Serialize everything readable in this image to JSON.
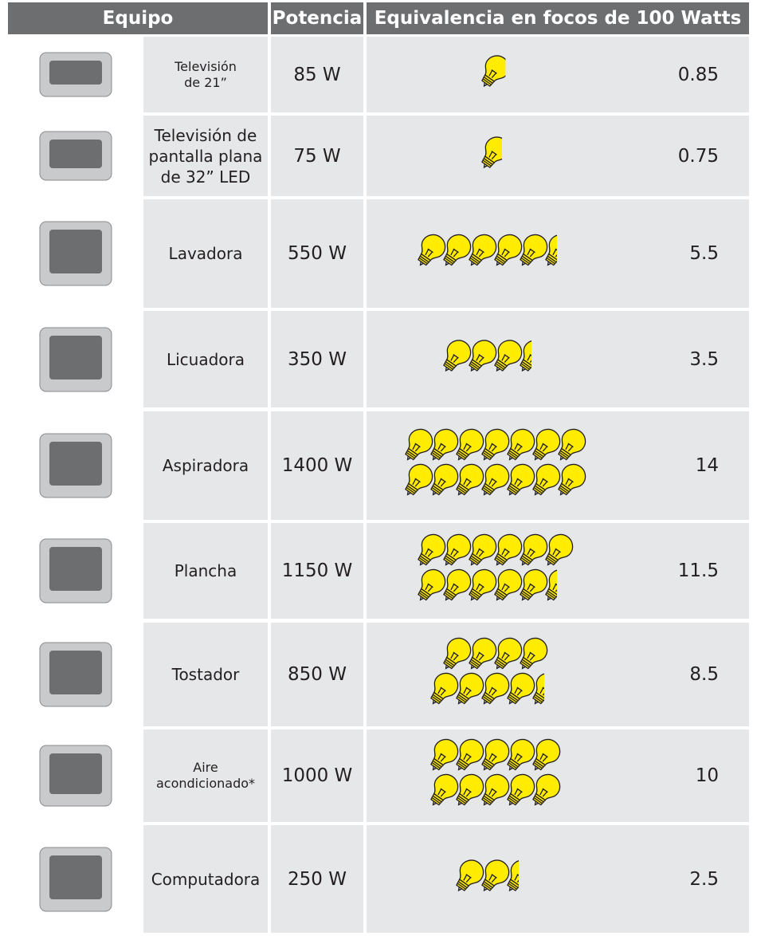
{
  "table": {
    "header": [
      "Equipo",
      "Potencia",
      "Equivalencia en focos de 100 Watts"
    ],
    "rows": [
      {
        "name": "Televisión\nde 21”",
        "power": "85 W",
        "equivalence": 0.85
      },
      {
        "name": "Televisión de\npantalla plana\nde 32” LED",
        "power": "75 W",
        "equivalence": 0.75
      },
      {
        "name": "Lavadora",
        "power": "550 W",
        "equivalence": 5.5
      },
      {
        "name": "Licuadora",
        "power": "350 W",
        "equivalence": 3.5
      },
      {
        "name": "Aspiradora",
        "power": "1400 W",
        "equivalence": 14
      },
      {
        "name": "Plancha",
        "power": "1150 W",
        "equivalence": 11.5
      },
      {
        "name": "Tostador",
        "power": "850 W",
        "equivalence": 8.5
      },
      {
        "name": "Aire\nacondicionado*",
        "power": "1000 W",
        "equivalence": 10
      },
      {
        "name": "Computadora",
        "power": "250 W",
        "equivalence": 2.5
      }
    ]
  }
}
